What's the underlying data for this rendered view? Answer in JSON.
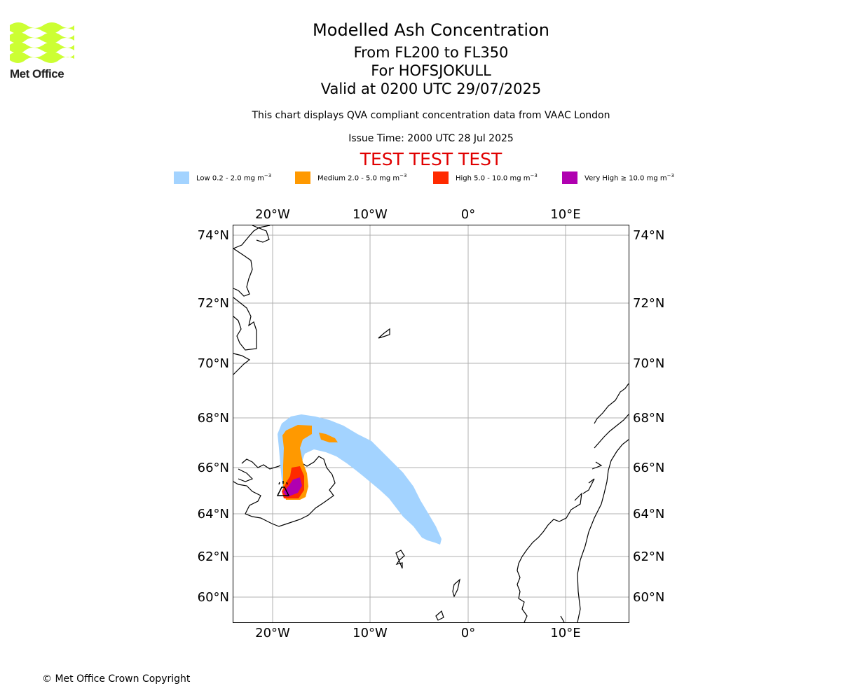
{
  "logo": {
    "wordmark": "Met Office",
    "color": "#ccff33"
  },
  "header": {
    "title": "Modelled Ash Concentration",
    "levels": "From FL200 to FL350",
    "volcano": "For HOFSJOKULL",
    "valid": "Valid at 0200 UTC 29/07/2025",
    "subtitle": "This chart displays QVA compliant concentration data from VAAC London",
    "issue_time": "Issue Time: 2000 UTC 28 Jul 2025",
    "test_banner": "TEST TEST TEST"
  },
  "legend": [
    {
      "name": "low",
      "text": "Low 0.2 - 2.0 mg m",
      "color": "#a3d3ff"
    },
    {
      "name": "medium",
      "text": "Medium 2.0 - 5.0 mg m",
      "color": "#ff9900"
    },
    {
      "name": "high",
      "text": "High 5.0 - 10.0 mg m",
      "color": "#ff2a00"
    },
    {
      "name": "very-high",
      "text": "Very High ≥ 10.0 mg m",
      "color": "#b000b0"
    }
  ],
  "legend_unit_exp": "−3",
  "map": {
    "lon_labels": [
      "20°W",
      "10°W",
      "0°",
      "10°E"
    ],
    "lat_labels": [
      "74°N",
      "72°N",
      "70°N",
      "68°N",
      "66°N",
      "64°N",
      "62°N",
      "60°N"
    ],
    "grid": true
  },
  "footer": {
    "copyright": "© Met Office Crown Copyright"
  }
}
